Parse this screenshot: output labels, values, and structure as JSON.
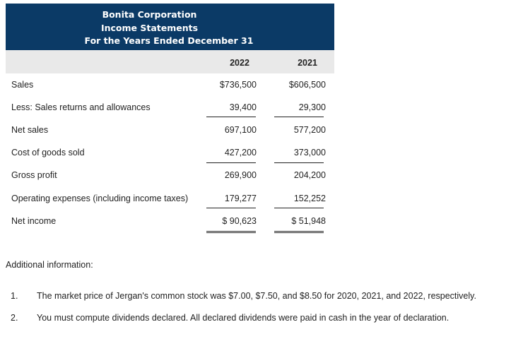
{
  "header": {
    "company": "Bonita Corporation",
    "statement": "Income Statements",
    "period": "For the Years Ended December 31"
  },
  "columns": [
    "2022",
    "2021"
  ],
  "rows": [
    {
      "label": "Sales",
      "v2022": "$736,500",
      "v2021": "$606,500"
    },
    {
      "label": "Less: Sales returns and allowances",
      "v2022": "39,400",
      "v2021": "29,300"
    },
    {
      "label": "Net sales",
      "v2022": "697,100",
      "v2021": "577,200"
    },
    {
      "label": "Cost of goods sold",
      "v2022": "427,200",
      "v2021": "373,000"
    },
    {
      "label": "Gross profit",
      "v2022": "269,900",
      "v2021": "204,200"
    },
    {
      "label": "Operating expenses (including income taxes)",
      "v2022": "179,277",
      "v2021": "152,252"
    },
    {
      "label": "Net income",
      "v2022": "$ 90,623",
      "v2021": "$ 51,948"
    }
  ],
  "additional": {
    "title": "Additional information:",
    "notes": [
      {
        "num": "1.",
        "text": "The market price of Jergan's common stock was $7.00, $7.50, and $8.50 for 2020, 2021, and 2022, respectively."
      },
      {
        "num": "2.",
        "text": "You must compute dividends declared. All declared dividends were paid in cash in the year of declaration."
      }
    ]
  }
}
